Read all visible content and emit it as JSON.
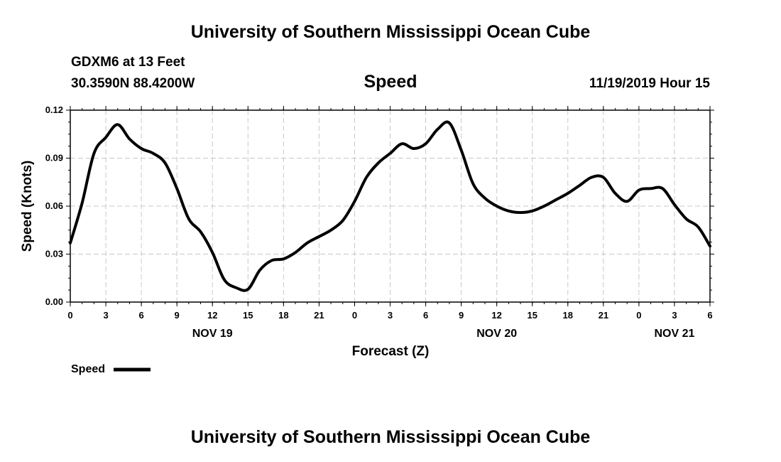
{
  "header": {
    "top_title": "University of Southern Mississippi Ocean Cube",
    "station": "GDXM6 at 13 Feet",
    "coords": "30.3590N 88.4200W",
    "datetime": "11/19/2019 Hour 15",
    "bottom_title": "University of Southern Mississippi Ocean Cube"
  },
  "chart_data": {
    "type": "line",
    "title": "Speed",
    "xlabel": "Forecast (Z)",
    "ylabel": "Speed (Knots)",
    "ylim": [
      0,
      0.12
    ],
    "xlim": [
      0,
      54
    ],
    "yticks": [
      "0.00",
      "0.03",
      "0.06",
      "0.09",
      "0.12"
    ],
    "yticks_values": [
      0,
      0.03,
      0.06,
      0.09,
      0.12
    ],
    "xticks": [
      "0",
      "3",
      "6",
      "9",
      "12",
      "15",
      "18",
      "21",
      "0",
      "3",
      "6",
      "9",
      "12",
      "15",
      "18",
      "21",
      "0",
      "3",
      "6"
    ],
    "day_labels": [
      {
        "label": "NOV 19",
        "at": 12
      },
      {
        "label": "NOV 20",
        "at": 36
      },
      {
        "label": "NOV 21",
        "at": 51
      }
    ],
    "grid": true,
    "legend_position": "bottom-left",
    "series": [
      {
        "name": "Speed",
        "color": "#000000",
        "x": [
          0,
          1,
          2,
          3,
          4,
          5,
          6,
          7,
          8,
          9,
          10,
          11,
          12,
          13,
          14,
          15,
          16,
          17,
          18,
          19,
          20,
          21,
          22,
          23,
          24,
          25,
          26,
          27,
          28,
          29,
          30,
          31,
          32,
          33,
          34,
          35,
          36,
          37,
          38,
          39,
          40,
          41,
          42,
          43,
          44,
          45,
          46,
          47,
          48,
          49,
          50,
          51,
          52,
          53,
          54
        ],
        "y": [
          0.037,
          0.062,
          0.093,
          0.103,
          0.111,
          0.102,
          0.096,
          0.093,
          0.087,
          0.071,
          0.052,
          0.044,
          0.031,
          0.014,
          0.009,
          0.008,
          0.02,
          0.026,
          0.027,
          0.031,
          0.037,
          0.041,
          0.045,
          0.051,
          0.063,
          0.078,
          0.087,
          0.093,
          0.099,
          0.096,
          0.099,
          0.108,
          0.112,
          0.095,
          0.074,
          0.065,
          0.06,
          0.057,
          0.056,
          0.057,
          0.06,
          0.064,
          0.068,
          0.073,
          0.078,
          0.078,
          0.068,
          0.063,
          0.07,
          0.071,
          0.071,
          0.061,
          0.052,
          0.047,
          0.035
        ]
      }
    ]
  }
}
